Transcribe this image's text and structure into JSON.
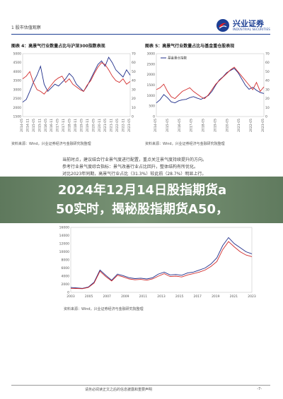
{
  "header": {
    "section": "1 股市估值观察",
    "brand_name": "兴业证券",
    "brand_sub": "INDUSTRIAL SECURITIES"
  },
  "figures": [
    {
      "title": "图表 4：高景气行业数量占比与沪深300指数表现",
      "source": "资料来源：Wind，兴业证券经济与金融研究院整理"
    },
    {
      "title": "图表 5：高景气行业数量占比与基金重仓股表现",
      "source": "资料来源：Wind，兴业证券经济与金融研究院整理"
    },
    {
      "source": "资料来源：Wind，兴业证券经济与金融研究院整理"
    }
  ],
  "text_block": [
    "当前时点，建议结合行业景气度进行配置，重点关注景气度持续提升的方向。",
    "参考行业景气度综合指标：景气改善行业占比回升，整体结构有所优化。",
    "对比2023年同期，高景气行业占比（31.3%）较此前（28.7%）明显上行。"
  ],
  "banner": {
    "line1": "2024年12月14日股指期货a",
    "line2": "50实时，揭秘股指期货A50，"
  },
  "footer": {
    "disclaimer": "请务必阅读正文之后的信息披露和重要声明",
    "page": "-7-"
  },
  "chart_data": [
    {
      "type": "line",
      "title": "图表 4：高景气行业数量占比与沪深300指数表现",
      "yleft_ticks": [
        "5000",
        "4500",
        "4000",
        "3500",
        "3000",
        "2500",
        "2000",
        "1500"
      ],
      "yright_ticks": [
        "70",
        "60",
        "50",
        "40",
        "30",
        "20",
        "10",
        "0"
      ],
      "x_ticks": [
        "2014-05",
        "2014-11",
        "2015-05",
        "2015-11",
        "2016-05",
        "2016-11",
        "2017-05",
        "2017-11",
        "2018-05",
        "2018-11",
        "2019-05",
        "2019-11",
        "2020-05",
        "2020-11",
        "2021-05",
        "2021-11",
        "2022-05",
        "2022-11",
        "2023-05"
      ],
      "series": [
        {
          "axis": "left",
          "color": "#1f2e8a",
          "values": [
            2300,
            2450,
            2900,
            3400,
            3800,
            4300,
            3300,
            2900,
            3100,
            3300,
            3200,
            3400,
            3600,
            3900,
            3700,
            3300,
            3100,
            2900,
            3200,
            3600,
            4000,
            4400,
            4600,
            4300,
            4800,
            4500,
            4100,
            3900,
            3700,
            4100,
            3800
          ]
        },
        {
          "axis": "right",
          "color": "#d22c2c",
          "values": [
            42,
            45,
            50,
            38,
            30,
            28,
            25,
            30,
            35,
            40,
            43,
            45,
            38,
            42,
            36,
            33,
            30,
            28,
            35,
            40,
            48,
            55,
            60,
            58,
            52,
            45,
            40,
            38,
            42,
            36,
            39
          ]
        }
      ],
      "yleft_range": [
        1500,
        5000
      ],
      "yright_range": [
        0,
        70
      ]
    },
    {
      "type": "line",
      "title": "图表 5：高景气行业数量占比与基金重仓股表现",
      "yleft_ticks": [
        "3000",
        "2500",
        "2000",
        "1500",
        "1000",
        "500",
        "0"
      ],
      "yright_ticks": [
        "70",
        "60",
        "50",
        "40",
        "30",
        "20",
        "10",
        "0"
      ],
      "x_ticks": [
        "2014-05",
        "2015-05",
        "2016-05",
        "2017-05",
        "2018-05",
        "2019-05",
        "2020-05",
        "2021-05",
        "2022-05",
        "2023-05"
      ],
      "series": [
        {
          "name": "基金重仓指数",
          "axis": "left",
          "color": "#1f2e8a",
          "values": [
            650,
            800,
            1050,
            900,
            700,
            650,
            750,
            800,
            820,
            900,
            950,
            880,
            820,
            900,
            1000,
            1200,
            1500,
            1750,
            1900,
            2100,
            2200,
            2300,
            2100,
            1800,
            1500,
            1300,
            1400,
            1250,
            1150,
            1100
          ]
        },
        {
          "axis": "right",
          "color": "#d22c2c",
          "values": [
            30,
            32,
            36,
            28,
            22,
            20,
            24,
            28,
            30,
            32,
            28,
            25,
            22,
            20,
            24,
            30,
            36,
            40,
            44,
            48,
            52,
            55,
            50,
            45,
            40,
            35,
            30,
            38,
            28,
            33
          ]
        }
      ],
      "yleft_range": [
        0,
        3000
      ],
      "yright_range": [
        0,
        70
      ]
    },
    {
      "type": "line",
      "yleft_ticks": [
        "16000",
        "14000",
        "12000",
        "10000",
        "8000",
        "6000",
        "4000",
        "2000",
        "0"
      ],
      "x_ticks": [
        "2003",
        "2005",
        "2007",
        "2009",
        "2011",
        "2013",
        "2015",
        "2017",
        "2019",
        "2021",
        "2023"
      ],
      "series": [
        {
          "axis": "left",
          "color": "#1f2e8a",
          "values": [
            1200,
            1100,
            1000,
            1300,
            2500,
            5500,
            4200,
            3000,
            4500,
            4100,
            3600,
            3400,
            3500,
            3300,
            3600,
            4500,
            5000,
            4300,
            4400,
            4200,
            4800,
            5000,
            5500,
            6000,
            7000,
            8500,
            11500,
            13500,
            12000,
            11000,
            10000,
            9500
          ]
        },
        {
          "axis": "left",
          "color": "#d22c2c",
          "values": [
            1000,
            950,
            900,
            1200,
            2300,
            5200,
            3900,
            2800,
            4200,
            3800,
            3300,
            3100,
            3200,
            3000,
            3300,
            4000,
            4600,
            3900,
            4000,
            3800,
            4300,
            4600,
            5000,
            5500,
            6400,
            7600,
            10500,
            12500,
            11200,
            10000,
            9200,
            8800
          ]
        }
      ],
      "y_range": [
        0,
        16000
      ]
    }
  ]
}
